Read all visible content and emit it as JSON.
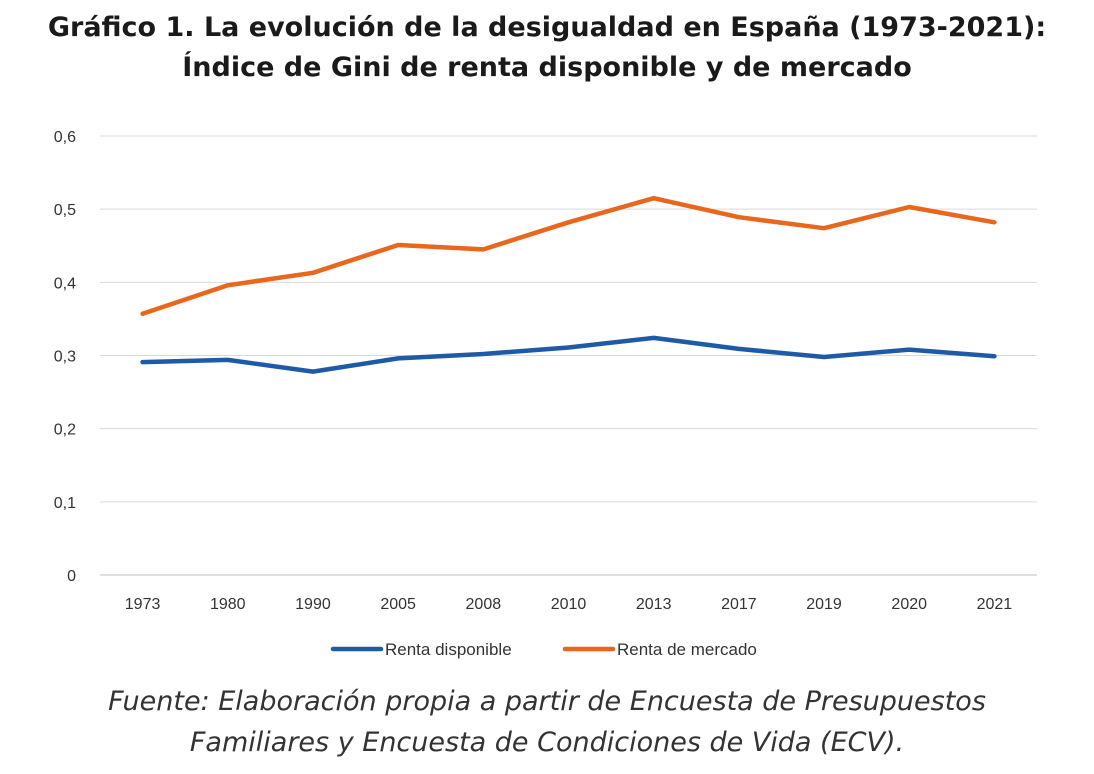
{
  "title_line1": "Gráfico 1. La evolución de la desigualdad en España (1973-2021):",
  "title_line2": "Índice de Gini de renta disponible y de mercado",
  "source_line1": "Fuente: Elaboración propia a partir de Encuesta de Presupuestos",
  "source_line2": "Familiares y Encuesta de Condiciones de Vida (ECV).",
  "chart_data": {
    "type": "line",
    "categories": [
      "1973",
      "1980",
      "1990",
      "2005",
      "2008",
      "2010",
      "2013",
      "2017",
      "2019",
      "2020",
      "2021"
    ],
    "series": [
      {
        "name": "Renta disponible",
        "color": "#1f5aa6",
        "values": [
          0.291,
          0.294,
          0.278,
          0.296,
          0.302,
          0.311,
          0.324,
          0.309,
          0.298,
          0.308,
          0.299
        ]
      },
      {
        "name": "Renta de mercado",
        "color": "#e8671c",
        "values": [
          0.357,
          0.396,
          0.413,
          0.451,
          0.445,
          0.482,
          0.515,
          0.489,
          0.474,
          0.503,
          0.482
        ]
      }
    ],
    "ylim": [
      0,
      0.6
    ],
    "yticks": [
      "0",
      "0,1",
      "0,2",
      "0,3",
      "0,4",
      "0,5",
      "0,6"
    ],
    "grid": true,
    "legend_position": "bottom"
  }
}
